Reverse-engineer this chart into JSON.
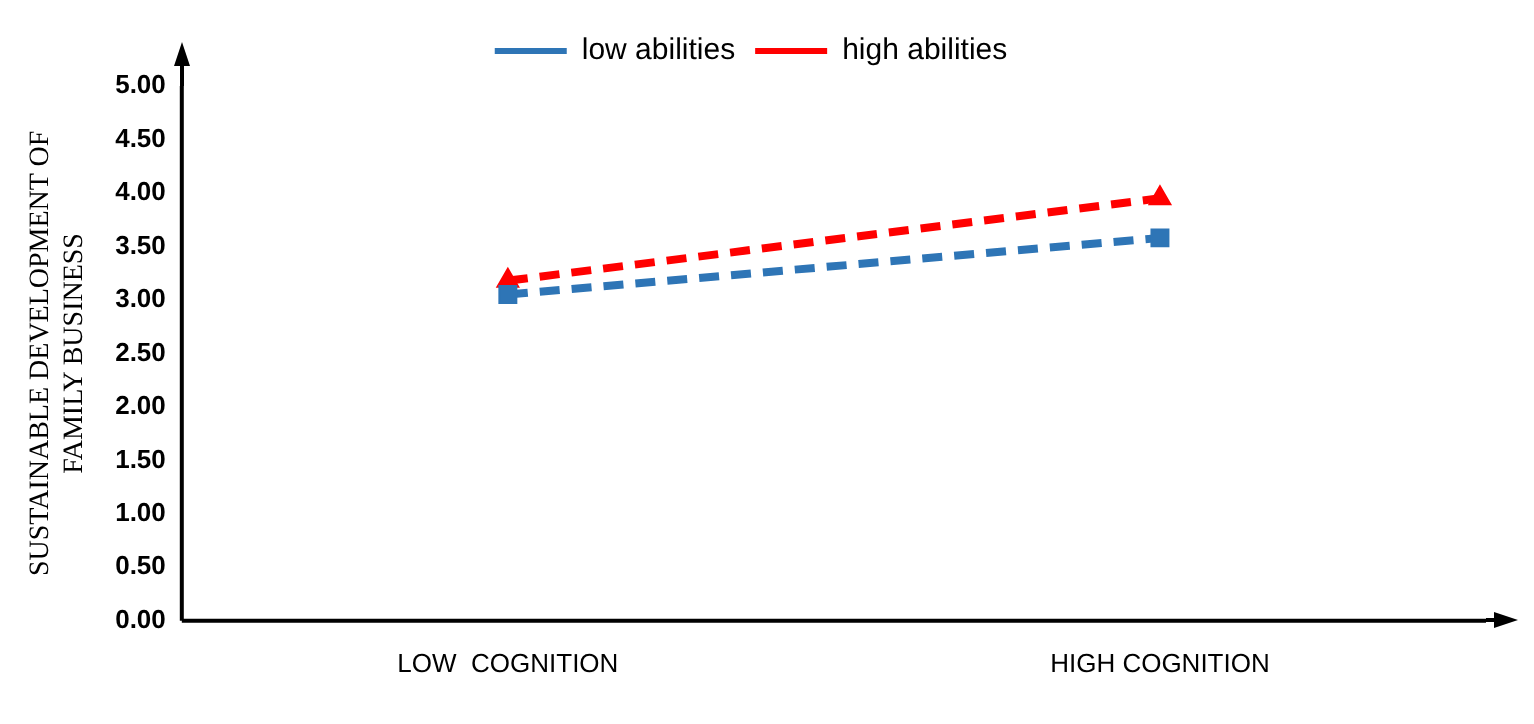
{
  "chart_data": {
    "type": "line",
    "ylabel": "SUSTAINABLE DEVELOPMENT OF FAMILY BUSINESS",
    "categories": [
      "LOW  COGNITION",
      "HIGH COGNITION"
    ],
    "series": [
      {
        "name": "low abilities",
        "color": "#2e75b6",
        "values": [
          3.05,
          3.58
        ],
        "marker": "square"
      },
      {
        "name": "high abilities",
        "color": "#ff0000",
        "values": [
          3.18,
          3.95
        ],
        "marker": "triangle"
      }
    ],
    "ylim": [
      0,
      5
    ],
    "yticks": [
      {
        "value": 0,
        "label": "0.00"
      },
      {
        "value": 0.5,
        "label": "0.50"
      },
      {
        "value": 1,
        "label": "1.00"
      },
      {
        "value": 1.5,
        "label": "1.50"
      },
      {
        "value": 2,
        "label": "2.00"
      },
      {
        "value": 2.5,
        "label": "2.50"
      },
      {
        "value": 3,
        "label": "3.00"
      },
      {
        "value": 3.5,
        "label": "3.50"
      },
      {
        "value": 4,
        "label": "4.00"
      },
      {
        "value": 4.5,
        "label": "4.50"
      },
      {
        "value": 5,
        "label": "5.00"
      }
    ],
    "grid": false,
    "legend": "top",
    "line_style": "dashed"
  }
}
